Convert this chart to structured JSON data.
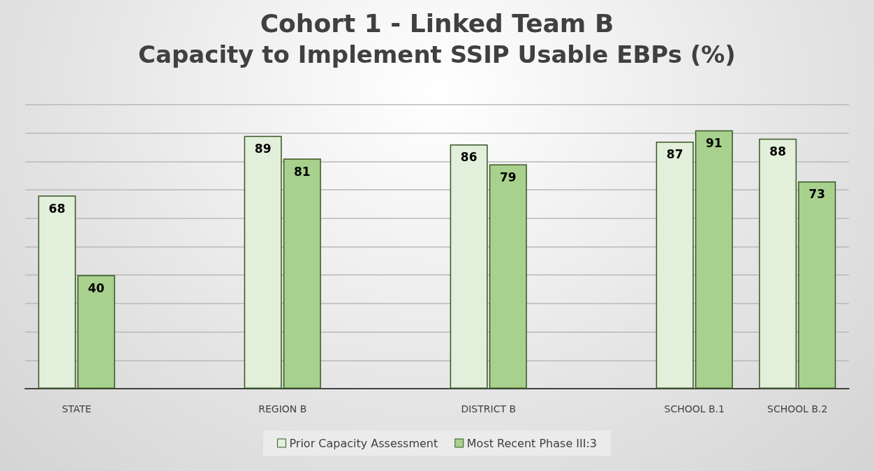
{
  "chart_data": {
    "type": "bar",
    "title": "Cohort 1 - Linked Team B",
    "subtitle": "Capacity to Implement SSIP Usable EBPs (%)",
    "categories": [
      "STATE",
      null,
      "REGION B",
      null,
      "DISTRICT B",
      null,
      "SCHOOL B.1",
      "SCHOOL B.2"
    ],
    "series": [
      {
        "name": "Prior Capacity Assessment",
        "color": "#e2efda",
        "values": [
          68,
          null,
          89,
          null,
          86,
          null,
          87,
          88
        ]
      },
      {
        "name": "Most Recent Phase III:3",
        "color": "#a9d18e",
        "values": [
          40,
          null,
          81,
          null,
          79,
          null,
          91,
          73
        ]
      }
    ],
    "ylim": [
      0,
      100
    ],
    "yticks": [
      {
        "value": 0,
        "label": null
      },
      {
        "value": 10,
        "label": null
      },
      {
        "value": 20,
        "label": null
      },
      {
        "value": 30,
        "label": null
      },
      {
        "value": 40,
        "label": null
      },
      {
        "value": 50,
        "label": null
      },
      {
        "value": 60,
        "label": null
      },
      {
        "value": 70,
        "label": null
      },
      {
        "value": 80,
        "label": null
      },
      {
        "value": 90,
        "label": null
      },
      {
        "value": 100,
        "label": null
      }
    ],
    "tick_labels": "x",
    "grid": "y",
    "legend": "bottom",
    "data_labels": true
  }
}
